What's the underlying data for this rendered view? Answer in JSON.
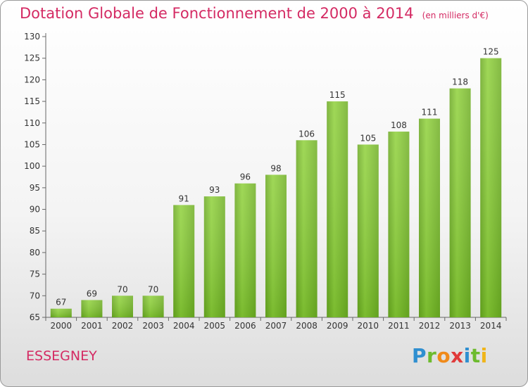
{
  "header": {
    "title": "Dotation Globale de Fonctionnement de 2000 à 2014",
    "unit": "(en milliers d'€)"
  },
  "footer": {
    "commune": "ESSEGNEY",
    "logo_letters": [
      {
        "ch": "P",
        "color": "#2f8fd0"
      },
      {
        "ch": "r",
        "color": "#6dbb2e"
      },
      {
        "ch": "o",
        "color": "#f08a1a"
      },
      {
        "ch": "x",
        "color": "#e03a3a"
      },
      {
        "ch": "i",
        "color": "#2f8fd0"
      },
      {
        "ch": "t",
        "color": "#6dbb2e"
      },
      {
        "ch": "i",
        "color": "#f0b51a"
      }
    ]
  },
  "chart_data": {
    "type": "bar",
    "title": "Dotation Globale de Fonctionnement de 2000 à 2014",
    "subtitle": "(en milliers d'€)",
    "categories": [
      "2000",
      "2001",
      "2002",
      "2003",
      "2004",
      "2005",
      "2006",
      "2007",
      "2008",
      "2009",
      "2010",
      "2011",
      "2012",
      "2013",
      "2014"
    ],
    "values": [
      67,
      69,
      70,
      70,
      91,
      93,
      96,
      98,
      106,
      115,
      105,
      108,
      111,
      118,
      125
    ],
    "ylim": [
      65,
      130
    ],
    "yticks": [
      65,
      70,
      75,
      80,
      85,
      90,
      95,
      100,
      105,
      110,
      115,
      120,
      125,
      130
    ],
    "grid": false,
    "bar_color": "#7cc02b"
  }
}
